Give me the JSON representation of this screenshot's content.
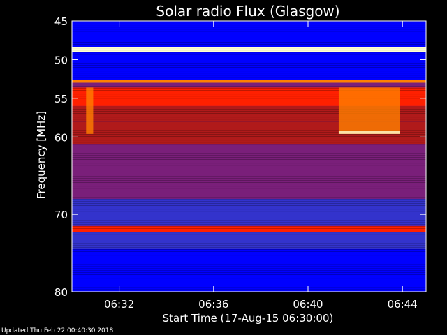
{
  "chart_data": {
    "type": "heatmap",
    "title": "Solar radio Flux (Glasgow)",
    "xlabel": "Start Time (17-Aug-15 06:30:00)",
    "ylabel": "Frequency [MHz]",
    "x_ticks": [
      "06:32",
      "06:36",
      "06:40",
      "06:44"
    ],
    "x_tick_minutes": [
      2,
      6,
      10,
      14
    ],
    "x_range_minutes": [
      0,
      15
    ],
    "y_ticks": [
      45,
      50,
      55,
      60,
      70,
      80
    ],
    "y_range_mhz": [
      45,
      80
    ],
    "colormap": [
      "#000060",
      "#0000ff",
      "#3333cc",
      "#7a1f7a",
      "#b01a1a",
      "#ff2000",
      "#ff8000",
      "#ffffd0"
    ],
    "frequency_bands": [
      {
        "from": 45.0,
        "to": 48.4,
        "level": 0.1
      },
      {
        "from": 48.4,
        "to": 49.0,
        "level": 0.97
      },
      {
        "from": 49.0,
        "to": 52.6,
        "level": 0.18
      },
      {
        "from": 52.6,
        "to": 53.0,
        "level": 0.8
      },
      {
        "from": 53.0,
        "to": 53.6,
        "level": 0.45
      },
      {
        "from": 53.6,
        "to": 56.0,
        "level": 0.78
      },
      {
        "from": 56.0,
        "to": 58.0,
        "level": 0.62
      },
      {
        "from": 58.0,
        "to": 61.0,
        "level": 0.55
      },
      {
        "from": 61.0,
        "to": 64.0,
        "level": 0.42
      },
      {
        "from": 64.0,
        "to": 68.0,
        "level": 0.38
      },
      {
        "from": 68.0,
        "to": 71.5,
        "level": 0.32
      },
      {
        "from": 71.5,
        "to": 72.3,
        "level": 0.7
      },
      {
        "from": 72.3,
        "to": 74.5,
        "level": 0.3
      },
      {
        "from": 74.5,
        "to": 77.0,
        "level": 0.16
      },
      {
        "from": 77.0,
        "to": 80.0,
        "level": 0.08
      }
    ],
    "bursts": [
      {
        "t_start": 0.6,
        "t_end": 0.9,
        "f_from": 53.6,
        "f_to": 59.6,
        "level": 0.9
      },
      {
        "t_start": 11.3,
        "t_end": 13.9,
        "f_from": 53.6,
        "f_to": 59.6,
        "level": 0.85
      },
      {
        "t_start": 11.3,
        "t_end": 13.9,
        "f_from": 59.2,
        "f_to": 59.6,
        "level": 0.95
      }
    ]
  },
  "footer": {
    "updated": "Updated Thu Feb 22 00:40:30 2018"
  }
}
